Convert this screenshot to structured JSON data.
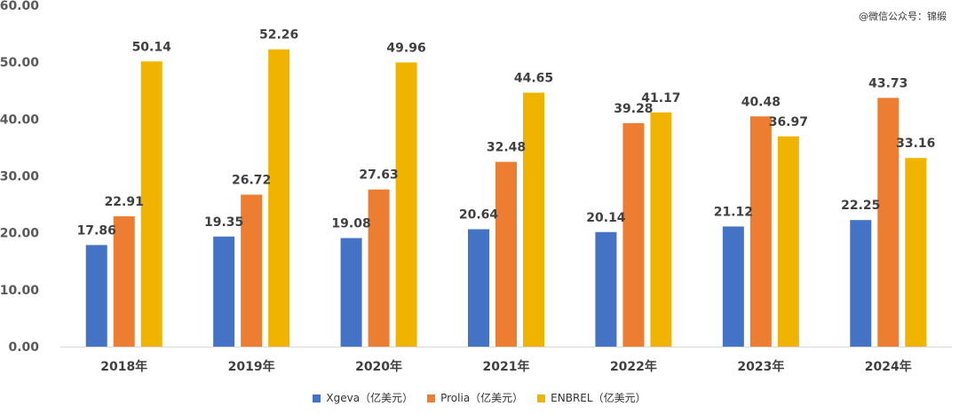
{
  "watermark": "@微信公众号：锦缎",
  "chart_data": {
    "type": "bar",
    "title": "",
    "xlabel": "",
    "ylabel": "",
    "ylim": [
      0,
      60
    ],
    "yticks": [
      "0.00",
      "10.00",
      "20.00",
      "30.00",
      "40.00",
      "50.00",
      "60.00"
    ],
    "categories": [
      "2018年",
      "2019年",
      "2020年",
      "2021年",
      "2022年",
      "2023年",
      "2024年"
    ],
    "series": [
      {
        "name": "Xgeva（亿美元）",
        "color": "#4472c4",
        "values": [
          17.86,
          19.35,
          19.08,
          20.64,
          20.14,
          21.12,
          22.25
        ],
        "labels": [
          "17.86",
          "19.35",
          "19.08",
          "20.64",
          "20.14",
          "21.12",
          "22.25"
        ]
      },
      {
        "name": "Prolia（亿美元）",
        "color": "#ed7d31",
        "values": [
          22.91,
          26.72,
          27.63,
          32.48,
          39.28,
          40.48,
          43.73
        ],
        "labels": [
          "22.91",
          "26.72",
          "27.63",
          "32.48",
          "39.28",
          "40.48",
          "43.73"
        ]
      },
      {
        "name": "ENBREL（亿美元）",
        "color": "#f0b400",
        "values": [
          50.14,
          52.26,
          49.96,
          44.65,
          41.17,
          36.97,
          33.16
        ],
        "labels": [
          "50.14",
          "52.26",
          "49.96",
          "44.65",
          "41.17",
          "36.97",
          "33.16"
        ]
      }
    ],
    "legend_position": "bottom",
    "grid": false
  }
}
